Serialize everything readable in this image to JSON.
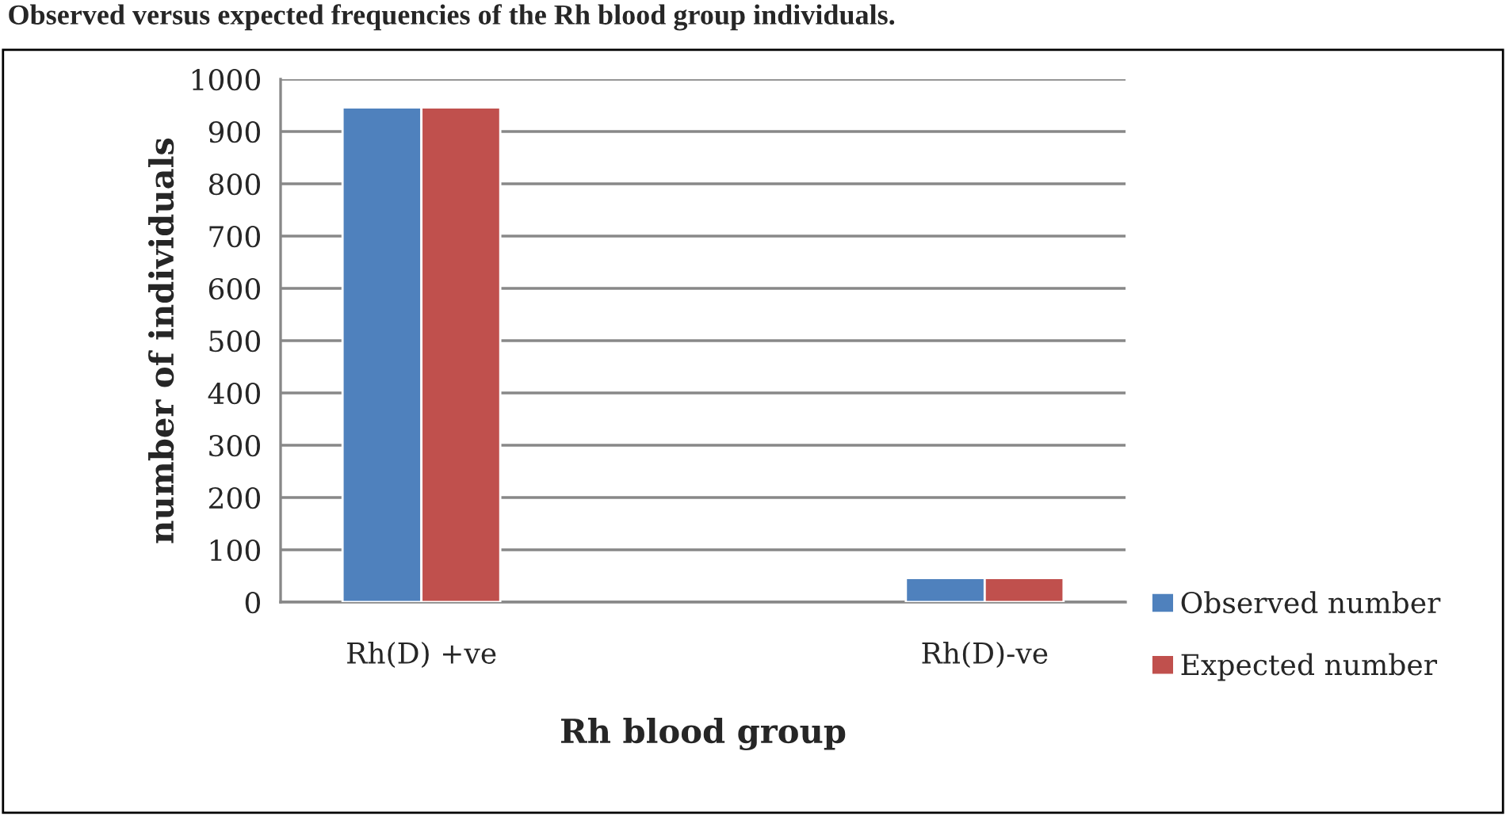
{
  "chart_data": {
    "type": "bar",
    "title": "Observed versus expected frequencies of the Rh blood group individuals.",
    "xlabel": "Rh blood group",
    "ylabel": "number of individuals",
    "categories": [
      "Rh(D) +ve",
      null,
      "Rh(D)-ve"
    ],
    "series": [
      {
        "name": "Observed number",
        "color": "#4f81bd",
        "values": [
          946,
          null,
          46
        ]
      },
      {
        "name": "Expected number",
        "color": "#c0504d",
        "values": [
          946,
          null,
          46
        ]
      }
    ],
    "ylim": [
      0,
      1000
    ],
    "yticks": [
      0,
      100,
      200,
      300,
      400,
      500,
      600,
      700,
      800,
      900,
      1000
    ],
    "grid": "y",
    "legend": "right"
  }
}
